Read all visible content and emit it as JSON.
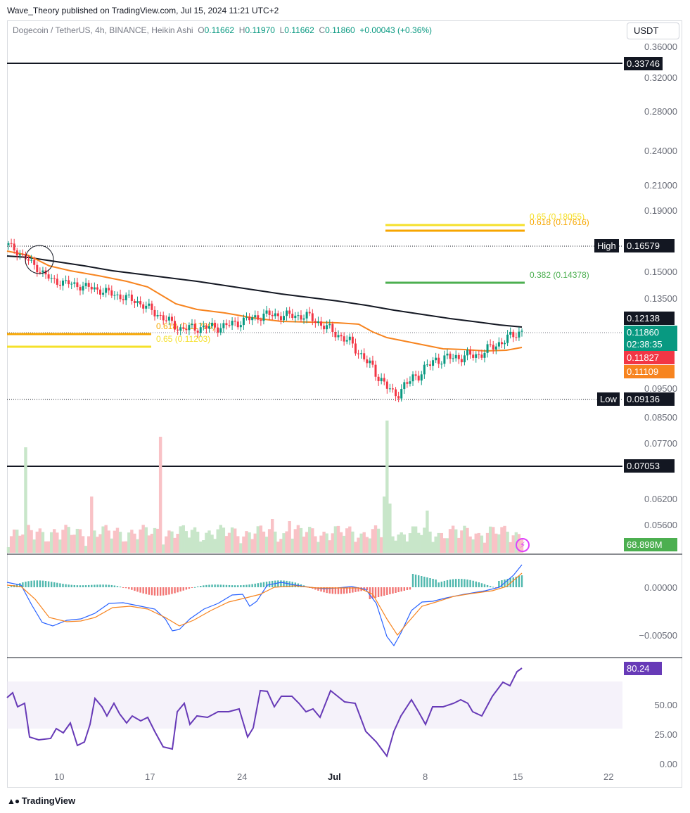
{
  "publisher": "Wave_Theory published on TradingView.com, Jul 15, 2024 11:21 UTC+2",
  "symbol": {
    "title": "Dogecoin / TetherUS, 4h, BINANCE, Heikin Ashi",
    "o_label": "O",
    "o": "0.11662",
    "h_label": "H",
    "h": "0.11970",
    "l_label": "L",
    "l": "0.11662",
    "c_label": "C",
    "c": "0.11860",
    "change": "+0.00043 (+0.36%)"
  },
  "currency": "USDT",
  "price_axis_ticks": [
    "0.36000",
    "0.32000",
    "0.28000",
    "0.24000",
    "0.21000",
    "0.19000",
    "0.15000",
    "0.13500",
    "0.09500",
    "0.08500",
    "0.07700",
    "0.06200",
    "0.05600"
  ],
  "macd_axis_ticks": [
    "0.00000",
    "−0.00500"
  ],
  "rsi_axis_ticks": [
    "50.00",
    "25.00",
    "0.00"
  ],
  "date_labels": [
    "10",
    "17",
    "24",
    "Jul",
    "8",
    "15",
    "22"
  ],
  "price_labels": {
    "line_top": "0.33746",
    "high_tag": "High",
    "high": "0.16579",
    "ma_black": "0.12138",
    "last": "0.11860",
    "countdown": "02:38:35",
    "red_tag": "0.11827",
    "orange_tag": "0.11109",
    "low_tag": "Low",
    "low": "0.09136",
    "line_bottom": "0.07053",
    "volume": "68.898M",
    "rsi": "80.24"
  },
  "fib_labels": {
    "right_065": "0.65 (0.18055)",
    "right_0618": "0.618 (0.17616)",
    "right_0382": "0.382 (0.14378)",
    "left_0618": "0.618 (0.11760)",
    "left_065": "0.65 (0.11203)"
  },
  "brand": "TradingView",
  "colors": {
    "up": "#089981",
    "down": "#f23645",
    "ma_black": "#131722",
    "ma_orange": "#f7841f",
    "fib_yellow": "#f5e02a",
    "fib_orange": "#f7a600",
    "fib_green": "#4caf50",
    "rsi": "#673ab7",
    "macd_blue": "#2962ff"
  },
  "chart_data": {
    "type": "line",
    "series_main": {
      "x": [
        "Jun 6",
        "Jun 10",
        "Jun 14",
        "Jun 17",
        "Jun 20",
        "Jun 24",
        "Jun 28",
        "Jul 1",
        "Jul 4",
        "Jul 5",
        "Jul 8",
        "Jul 11",
        "Jul 15"
      ],
      "close": [
        0.1658,
        0.1445,
        0.1398,
        0.133,
        0.1195,
        0.1205,
        0.1262,
        0.1255,
        0.113,
        0.092,
        0.106,
        0.108,
        0.1186
      ]
    },
    "ma_black": [
      0.163,
      0.157,
      0.151,
      0.146,
      0.141,
      0.136,
      0.132,
      0.129,
      0.127,
      0.1255,
      0.1235,
      0.1222,
      0.1214
    ],
    "ma_orange": [
      0.164,
      0.154,
      0.146,
      0.136,
      0.123,
      0.121,
      0.123,
      0.123,
      0.119,
      0.1135,
      0.11,
      0.11,
      0.1111
    ],
    "levels": {
      "high": 0.16579,
      "low": 0.09136,
      "upper_line": 0.33746,
      "lower_line": 0.07053
    },
    "fib_levels": [
      0.18055,
      0.17616,
      0.14378,
      0.1176,
      0.11203
    ],
    "rsi": [
      70,
      22,
      48,
      28,
      60,
      44,
      62,
      52,
      40,
      9,
      55,
      58,
      80.24
    ],
    "rsi_band": [
      30,
      70
    ],
    "ylim_price": [
      0.056,
      0.36
    ],
    "xlabel": "",
    "ylabel": ""
  }
}
